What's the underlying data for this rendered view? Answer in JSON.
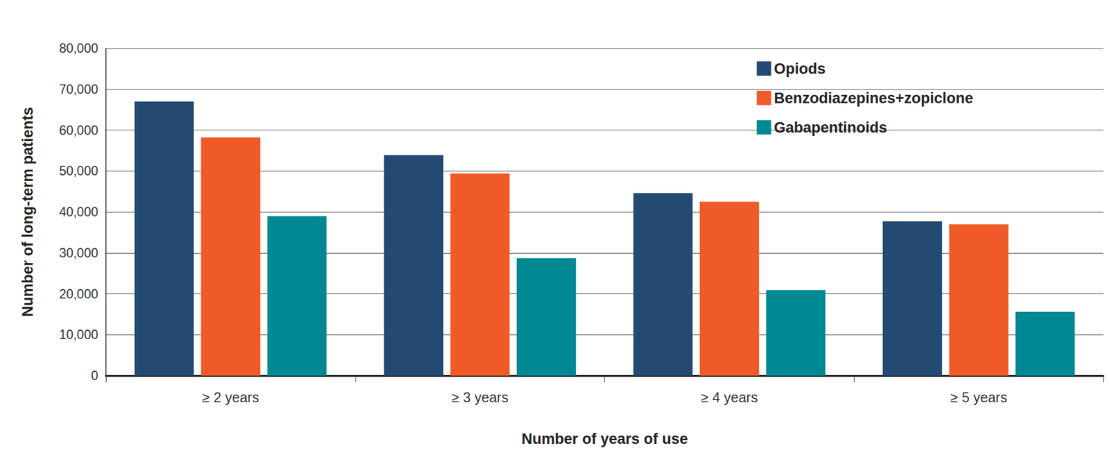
{
  "chart_data": {
    "type": "bar",
    "categories": [
      "≥ 2 years",
      "≥ 3 years",
      "≥ 4 years",
      "≥ 5 years"
    ],
    "series": [
      {
        "name": "Opiods",
        "color": "#234a72",
        "values": [
          67000,
          53900,
          44600,
          37700
        ]
      },
      {
        "name": "Benzodiazepines+zopiclone",
        "color": "#f05a28",
        "values": [
          58200,
          49400,
          42500,
          37000
        ]
      },
      {
        "name": "Gabapentinoids",
        "color": "#008893",
        "values": [
          39000,
          28700,
          20900,
          15600
        ]
      }
    ],
    "x_label": "Number of years of use",
    "y_label": "Number of long-term patients",
    "ylim": [
      0,
      80000
    ],
    "yticks": [
      0,
      {
        "value": 10000,
        "label": "10,000"
      },
      {
        "value": 20000,
        "label": "20,000"
      },
      {
        "value": 30000,
        "label": "30,000"
      },
      {
        "value": 40000,
        "label": "40,000"
      },
      {
        "value": 50000,
        "label": "50,000"
      },
      {
        "value": 60000,
        "label": "60,000"
      },
      {
        "value": 70000,
        "label": "70,000"
      },
      {
        "value": 80000,
        "label": "80,000"
      }
    ],
    "grid": true,
    "legend": "top-right"
  }
}
